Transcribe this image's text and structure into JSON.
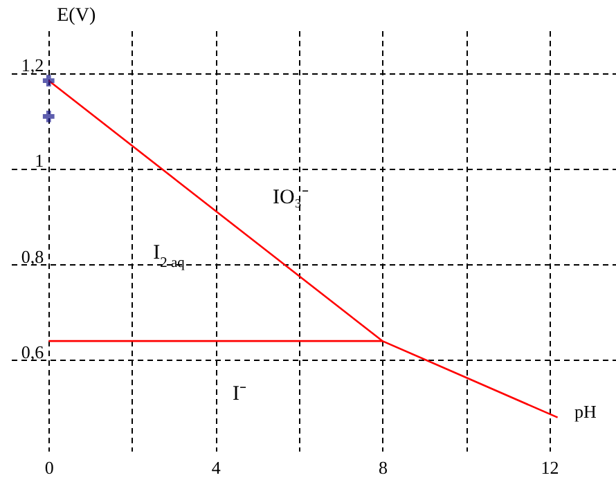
{
  "chart_data": {
    "type": "line",
    "xlabel": "pH",
    "ylabel": "E(V)",
    "xlim": [
      -0.9,
      13.6
    ],
    "ylim": [
      0.41,
      1.29
    ],
    "xticks": [
      0,
      {
        "value": 2,
        "label": null
      },
      4,
      {
        "value": 6,
        "label": null
      },
      8,
      {
        "value": 10,
        "label": null
      },
      12
    ],
    "yticks": [
      {
        "value": 0.6,
        "label": "0,6"
      },
      {
        "value": 0.8,
        "label": "0,8"
      },
      1,
      {
        "value": 1.2,
        "label": "1,2"
      }
    ],
    "grid": true,
    "marker": "none",
    "line_style": "solid",
    "series": [
      {
        "color": "#ff0000",
        "x": [
          0,
          8,
          12.2
        ],
        "values": [
          1.185,
          0.64,
          0.48
        ]
      },
      {
        "color": "#ff0000",
        "x": [
          0,
          8
        ],
        "values": [
          0.64,
          0.64
        ]
      },
      {
        "type": "scatter",
        "color": "#1a1a8c",
        "marker": "cross",
        "x": [
          0,
          0
        ],
        "values": [
          1.185,
          1.11
        ]
      }
    ],
    "annotations": [
      "IO₃⁻",
      "I$_{2 aq}$",
      "I⁻"
    ]
  }
}
